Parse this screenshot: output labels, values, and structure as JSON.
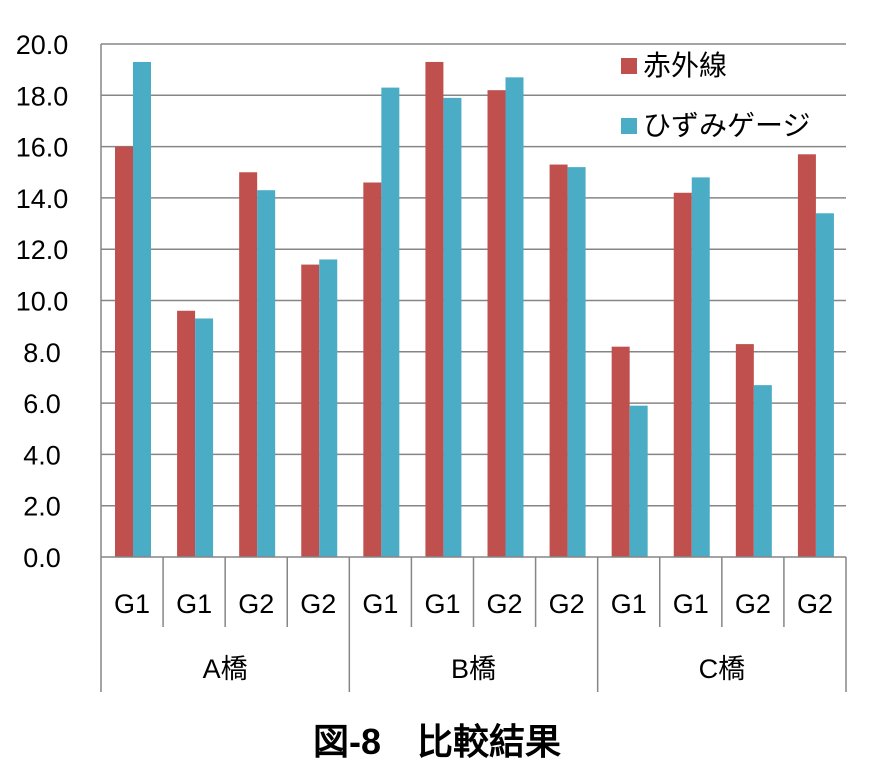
{
  "chart_data": {
    "type": "bar",
    "title": "図-8　比較結果",
    "xlabel": "",
    "ylabel": "",
    "ylim": [
      0,
      20
    ],
    "ytick_step": 2,
    "ytick_labels": [
      "0.0",
      "2.0",
      "4.0",
      "6.0",
      "8.0",
      "10.0",
      "12.0",
      "14.0",
      "16.0",
      "18.0",
      "20.0"
    ],
    "grid": true,
    "legend_position": "top-right",
    "categories": [
      "G1",
      "G1",
      "G2",
      "G2",
      "G1",
      "G1",
      "G2",
      "G2",
      "G1",
      "G1",
      "G2",
      "G2"
    ],
    "groups": [
      {
        "label": "A橋",
        "span": 4
      },
      {
        "label": "B橋",
        "span": 4
      },
      {
        "label": "C橋",
        "span": 4
      }
    ],
    "series": [
      {
        "name": "赤外線",
        "color": "#C0504D",
        "values": [
          16.0,
          9.6,
          15.0,
          11.4,
          14.6,
          19.3,
          18.2,
          15.3,
          8.2,
          14.2,
          8.3,
          15.7
        ]
      },
      {
        "name": "ひずみゲージ",
        "color": "#4BACC6",
        "values": [
          19.3,
          9.3,
          14.3,
          11.6,
          18.3,
          17.9,
          18.7,
          15.2,
          5.9,
          14.8,
          6.7,
          13.4
        ]
      }
    ]
  }
}
